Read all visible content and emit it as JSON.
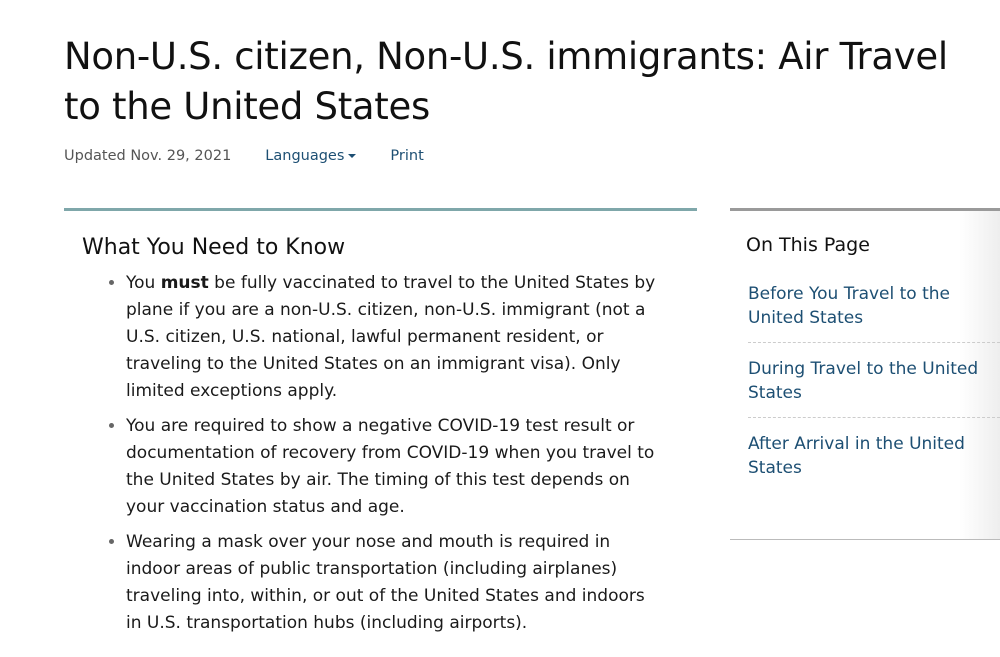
{
  "page": {
    "title": "Non-U.S. citizen, Non-U.S. immigrants: Air Travel to the United States",
    "updated": "Updated Nov. 29, 2021",
    "languages_label": "Languages",
    "print_label": "Print"
  },
  "main": {
    "heading": "What You Need to Know",
    "bullets": [
      {
        "pre": "You ",
        "bold": "must",
        "post": " be fully vaccinated to travel to the United States by plane if you are a non-U.S. citizen, non-U.S. immigrant (not a U.S. citizen, U.S. national, lawful permanent resident, or traveling to the United States on an immigrant visa). Only limited exceptions apply."
      },
      {
        "text": "You are required to show a negative COVID-19 test result or documentation of recovery from COVID-19 when you travel to the United States by air. The timing of this test depends on your vaccination status and age."
      },
      {
        "text": "Wearing a mask over your nose and mouth is required in indoor areas of public transportation (including airplanes) traveling into, within, or out of the United States and indoors in U.S. transportation hubs (including airports)."
      }
    ]
  },
  "sidebar": {
    "heading": "On This Page",
    "items": [
      {
        "label": "Before You Travel to the United States"
      },
      {
        "label": "During Travel to the United States"
      },
      {
        "label": "After Arrival in the United States"
      }
    ]
  },
  "colors": {
    "link": "#1d4f73",
    "accent_border": "#7fa7aa"
  }
}
